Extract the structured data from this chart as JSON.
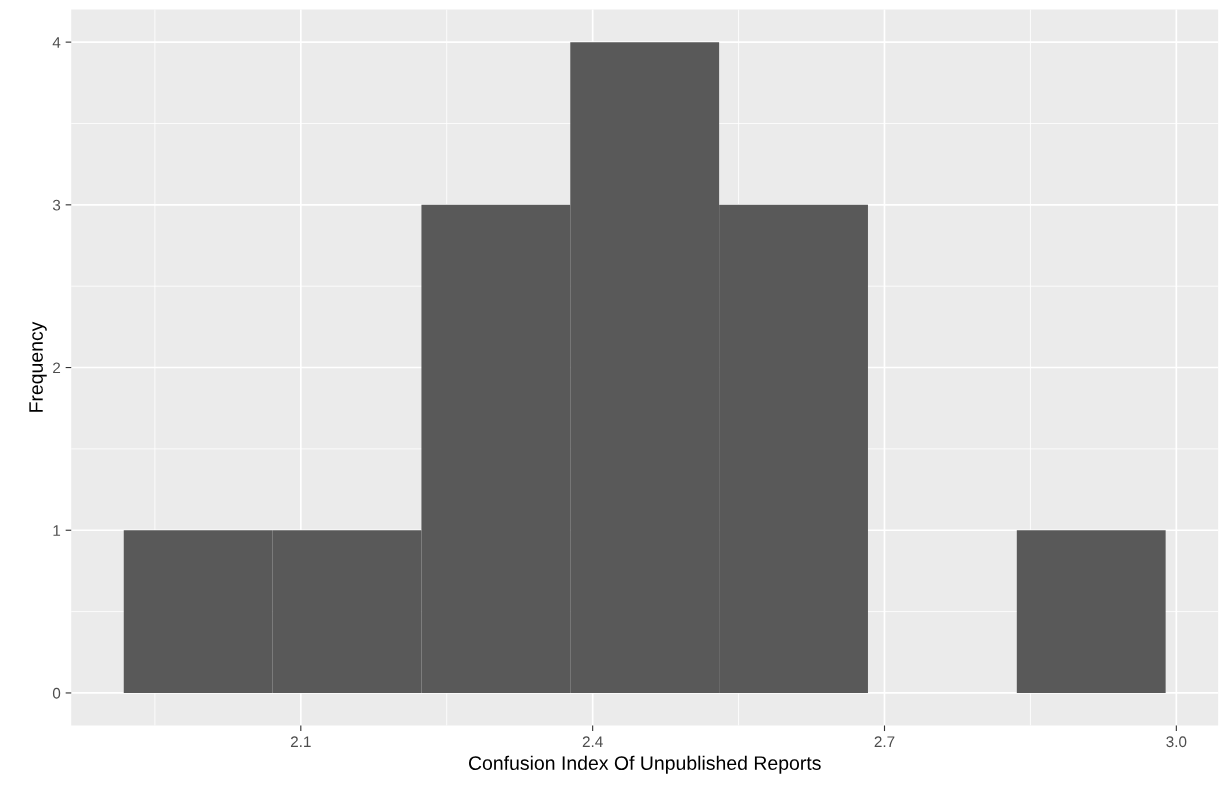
{
  "chart_data": {
    "type": "histogram",
    "xlabel": "Confusion Index Of Unpublished Reports",
    "ylabel": "Frequency",
    "bins": [
      1.918,
      2.071,
      2.224,
      2.377,
      2.53,
      2.683,
      2.836,
      2.989
    ],
    "values": [
      1,
      1,
      3,
      4,
      3,
      0,
      1
    ],
    "color": "#595959",
    "xlim": [
      1.864,
      3.043
    ],
    "xticks": [
      {
        "value": 2.1,
        "label": "2.1"
      },
      {
        "value": 2.4,
        "label": "2.4"
      },
      {
        "value": 2.7,
        "label": "2.7"
      },
      {
        "value": 3.0,
        "label": "3.0"
      }
    ],
    "ylim": [
      -0.2,
      4.2
    ],
    "yticks": [
      0,
      1,
      2,
      3,
      4
    ],
    "grid": true
  }
}
